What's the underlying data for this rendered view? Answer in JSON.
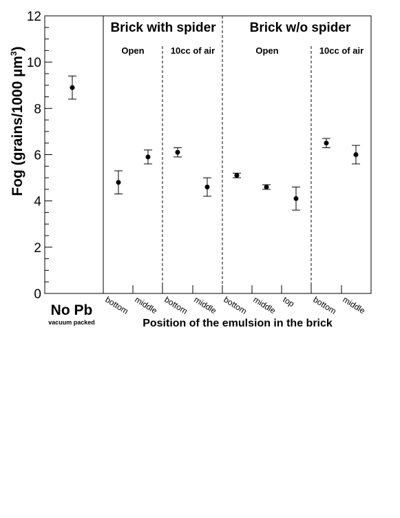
{
  "chart_data": {
    "type": "scatter",
    "ylabel": "Fog (grains/1000 µm",
    "ylabel_sup": "3",
    "ylabel_close": ")",
    "xlabel": "Position of the emulsion in the brick",
    "ylim": [
      0,
      12
    ],
    "yticks": [
      "0",
      "2",
      "4",
      "6",
      "8",
      "10",
      "12"
    ],
    "grid": false,
    "error_bars": true,
    "colors": {
      "marker": "#000000",
      "axes": "#000000"
    },
    "group_titles": [
      "Brick with spider",
      "Brick w/o spider"
    ],
    "section_titles": [
      "Open",
      "10cc of air",
      "Open",
      "10cc of air"
    ],
    "nopb_label": "No Pb",
    "nopb_sublabel": "vacuum packed",
    "categories": [
      "",
      "bottom",
      "middle",
      "bottom",
      "middle",
      "bottom",
      "middle",
      "top",
      "bottom",
      "middle"
    ],
    "values": [
      8.9,
      4.8,
      5.9,
      6.1,
      4.6,
      5.1,
      4.6,
      4.1,
      6.5,
      6.0
    ],
    "err_low": [
      8.4,
      4.3,
      5.6,
      5.9,
      4.2,
      5.0,
      4.5,
      3.6,
      6.3,
      5.6
    ],
    "err_high": [
      9.4,
      5.3,
      6.2,
      6.3,
      5.0,
      5.2,
      4.7,
      4.6,
      6.7,
      6.4
    ]
  }
}
